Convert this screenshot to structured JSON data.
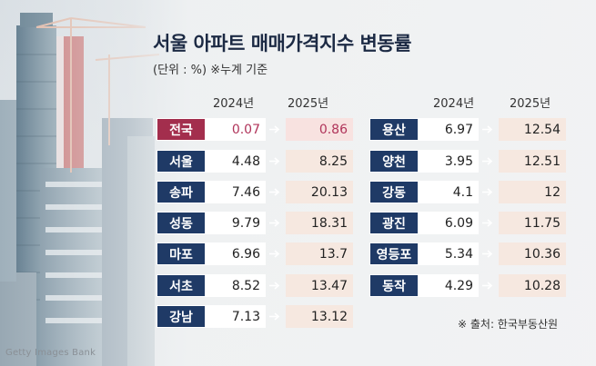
{
  "title": "서울 아파트 매매가격지수 변동률",
  "subtitle": "(단위 : %) ※누계 기준",
  "year_headers": {
    "left_2024": "2024년",
    "left_2025": "2025년",
    "right_2024": "2024년",
    "right_2025": "2025년"
  },
  "left_table": [
    {
      "region": "전국",
      "v2024": "0.07",
      "v2025": "0.86",
      "highlight": true
    },
    {
      "region": "서울",
      "v2024": "4.48",
      "v2025": "8.25",
      "highlight": false
    },
    {
      "region": "송파",
      "v2024": "7.46",
      "v2025": "20.13",
      "highlight": false
    },
    {
      "region": "성동",
      "v2024": "9.79",
      "v2025": "18.31",
      "highlight": false
    },
    {
      "region": "마포",
      "v2024": "6.96",
      "v2025": "13.7",
      "highlight": false
    },
    {
      "region": "서초",
      "v2024": "8.52",
      "v2025": "13.47",
      "highlight": false
    },
    {
      "region": "강남",
      "v2024": "7.13",
      "v2025": "13.12",
      "highlight": false
    }
  ],
  "right_table": [
    {
      "region": "용산",
      "v2024": "6.97",
      "v2025": "12.54"
    },
    {
      "region": "양천",
      "v2024": "3.95",
      "v2025": "12.51"
    },
    {
      "region": "강동",
      "v2024": "4.1",
      "v2025": "12"
    },
    {
      "region": "광진",
      "v2024": "6.09",
      "v2025": "11.75"
    },
    {
      "region": "영등포",
      "v2024": "5.34",
      "v2025": "10.36"
    },
    {
      "region": "동작",
      "v2024": "4.29",
      "v2025": "10.28"
    }
  ],
  "source": "※ 출처: 한국부동산원",
  "watermark": "Getty Images Bank",
  "colors": {
    "region_box": "#1f3a66",
    "highlight_box": "#a32e4d",
    "highlight_text": "#b0345a",
    "value_2025_bg": "#f6e8e0"
  }
}
